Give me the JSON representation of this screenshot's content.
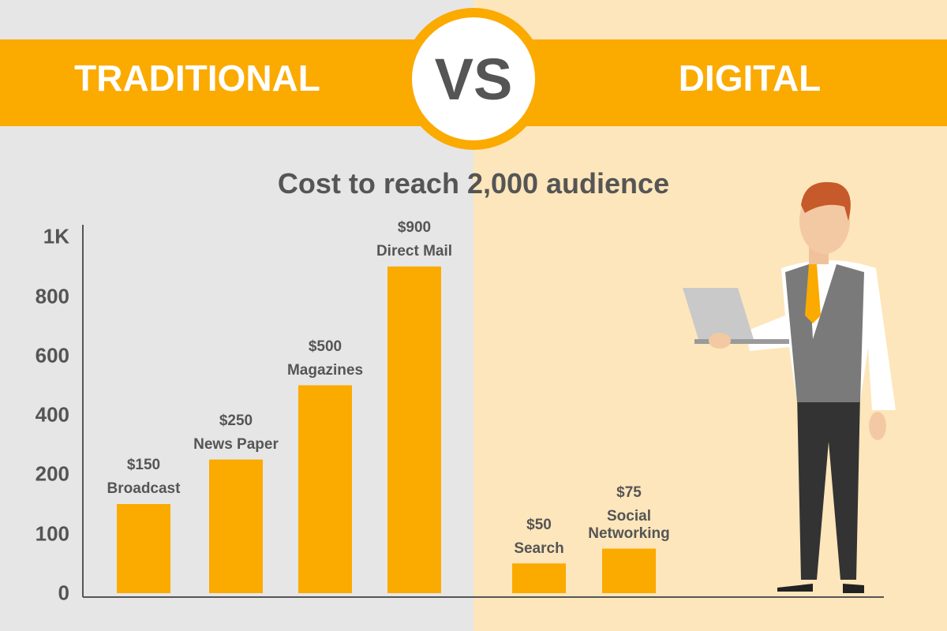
{
  "header": {
    "left": "TRADITIONAL",
    "center": "VS",
    "right": "DIGITAL"
  },
  "chart_data": {
    "type": "bar",
    "title": "Cost to reach 2,000 audience",
    "categories": [
      "Broadcast",
      "News Paper",
      "Magazines",
      "Direct Mail",
      "Search",
      "Social Networking"
    ],
    "values": [
      150,
      250,
      500,
      900,
      50,
      75
    ],
    "value_labels": [
      "$150",
      "$250",
      "$500",
      "$900",
      "$50",
      "$75"
    ],
    "color": "#fbaa00",
    "ylim": [
      0,
      1000
    ],
    "yticks": [
      0,
      100,
      200,
      400,
      600,
      800,
      {
        "value": 1000,
        "label": "1K"
      }
    ]
  }
}
